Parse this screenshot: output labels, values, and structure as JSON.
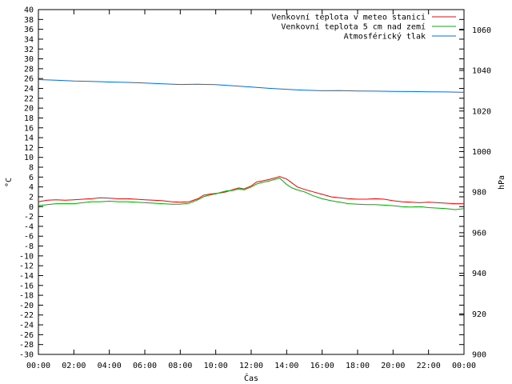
{
  "chart_data": {
    "type": "line",
    "xlabel": "Čas",
    "ylabel_left": "°C",
    "ylabel_right": "hPa",
    "x_ticks": [
      "00:00",
      "02:00",
      "04:00",
      "06:00",
      "08:00",
      "10:00",
      "12:00",
      "14:00",
      "16:00",
      "18:00",
      "20:00",
      "22:00",
      "00:00"
    ],
    "x_range_hours": [
      0,
      24
    ],
    "ylim_left": [
      -30,
      40
    ],
    "ylim_right": [
      900,
      1070
    ],
    "left_ticks": [
      40,
      38,
      36,
      34,
      32,
      30,
      28,
      26,
      24,
      22,
      20,
      18,
      16,
      14,
      12,
      10,
      8,
      6,
      4,
      2,
      0,
      -2,
      -4,
      -6,
      -8,
      -10,
      -12,
      -14,
      -16,
      -18,
      -20,
      -22,
      -24,
      -26,
      -28,
      -30
    ],
    "right_ticks": [
      1060,
      1040,
      1020,
      1000,
      980,
      960,
      940,
      920,
      900
    ],
    "grid": false,
    "legend_position": "top-right",
    "series": [
      {
        "name": "Venkovní teplota v meteo stanici",
        "color": "#ff0000",
        "axis": "left",
        "hours": [
          0,
          0.5,
          1,
          1.5,
          2,
          2.5,
          3,
          3.5,
          4,
          4.5,
          5,
          5.5,
          6,
          6.5,
          7,
          7.5,
          8,
          8.5,
          9,
          9.3,
          9.6,
          10,
          10.3,
          10.6,
          11,
          11.3,
          11.6,
          12,
          12.3,
          12.6,
          13,
          13.3,
          13.6,
          14,
          14.3,
          14.6,
          15,
          15.5,
          16,
          16.5,
          17,
          17.5,
          18,
          18.5,
          19,
          19.5,
          20,
          20.5,
          21,
          21.5,
          22,
          22.5,
          23,
          23.5,
          24
        ],
        "values": [
          1.0,
          1.3,
          1.4,
          1.3,
          1.4,
          1.5,
          1.6,
          1.8,
          1.7,
          1.6,
          1.6,
          1.5,
          1.4,
          1.3,
          1.2,
          1.0,
          0.9,
          1.0,
          1.6,
          2.3,
          2.5,
          2.7,
          2.8,
          3.0,
          3.5,
          3.8,
          3.6,
          4.2,
          5.0,
          5.2,
          5.5,
          5.8,
          6.1,
          5.6,
          4.8,
          4.0,
          3.5,
          3.0,
          2.5,
          2.0,
          1.8,
          1.6,
          1.5,
          1.5,
          1.6,
          1.5,
          1.2,
          1.0,
          0.9,
          0.8,
          0.9,
          0.8,
          0.7,
          0.6,
          0.6
        ]
      },
      {
        "name": "Venkovní teplota 5 cm nad zemí",
        "color": "#00b000",
        "axis": "left",
        "hours": [
          0,
          0.5,
          1,
          1.5,
          2,
          2.5,
          3,
          3.5,
          4,
          4.5,
          5,
          5.5,
          6,
          6.5,
          7,
          7.5,
          8,
          8.5,
          9,
          9.3,
          9.6,
          10,
          10.3,
          10.6,
          11,
          11.3,
          11.6,
          12,
          12.3,
          12.6,
          13,
          13.3,
          13.6,
          14,
          14.3,
          14.6,
          15,
          15.5,
          16,
          16.5,
          17,
          17.5,
          18,
          18.5,
          19,
          19.5,
          20,
          20.5,
          21,
          21.5,
          22,
          22.5,
          23,
          23.5,
          24
        ],
        "values": [
          0.2,
          0.4,
          0.6,
          0.6,
          0.6,
          0.8,
          1.0,
          1.0,
          1.1,
          1.0,
          1.0,
          0.9,
          0.8,
          0.7,
          0.6,
          0.5,
          0.5,
          0.7,
          1.4,
          2.0,
          2.3,
          2.6,
          2.9,
          3.2,
          3.3,
          3.6,
          3.4,
          4.0,
          4.6,
          4.9,
          5.2,
          5.5,
          5.8,
          4.5,
          3.8,
          3.4,
          3.0,
          2.2,
          1.6,
          1.2,
          0.9,
          0.6,
          0.5,
          0.4,
          0.4,
          0.3,
          0.2,
          0.0,
          -0.1,
          0.0,
          -0.2,
          -0.3,
          -0.4,
          -0.6,
          -0.4
        ]
      },
      {
        "name": "Atmosférický tlak",
        "color": "#0070e0",
        "axis": "right",
        "hours": [
          0,
          1,
          2,
          3,
          4,
          5,
          6,
          7,
          8,
          9,
          10,
          11,
          12,
          13,
          14,
          15,
          16,
          17,
          18,
          19,
          20,
          21,
          22,
          23,
          24
        ],
        "values": [
          1035.5,
          1035.2,
          1034.8,
          1034.6,
          1034.3,
          1034.1,
          1033.8,
          1033.4,
          1033.1,
          1033.2,
          1033.0,
          1032.4,
          1031.8,
          1031.2,
          1030.7,
          1030.3,
          1030.0,
          1030.1,
          1029.9,
          1029.8,
          1029.7,
          1029.6,
          1029.5,
          1029.4,
          1029.2
        ]
      }
    ]
  }
}
